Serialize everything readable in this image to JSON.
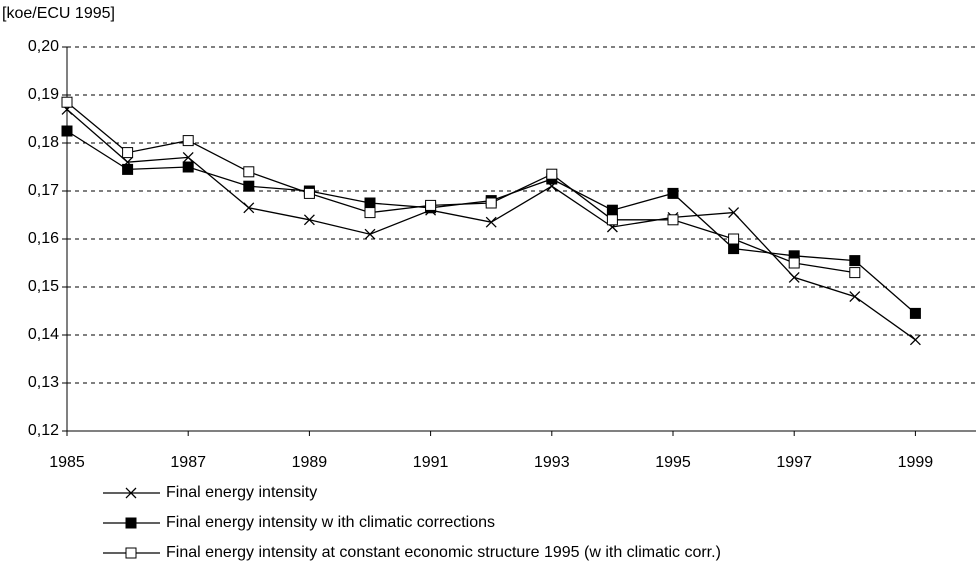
{
  "chart_data": {
    "type": "line",
    "y_label": "[koe/ECU 1995]",
    "x": [
      1985,
      1986,
      1987,
      1988,
      1989,
      1990,
      1991,
      1992,
      1993,
      1994,
      1995,
      1996,
      1997,
      1998,
      1999
    ],
    "series": [
      {
        "name": "Final energy intensity",
        "color": "#000000",
        "marker": "x",
        "values": [
          0.187,
          0.176,
          0.177,
          0.1665,
          0.164,
          0.161,
          0.166,
          0.1635,
          0.171,
          0.1625,
          0.1645,
          0.1655,
          0.152,
          0.148,
          0.139
        ]
      },
      {
        "name": "Final energy intensity w ith climatic corrections",
        "color": "#000000",
        "marker": "square-filled",
        "values": [
          0.1825,
          0.1745,
          0.175,
          0.171,
          0.17,
          0.1675,
          0.1665,
          0.168,
          0.1725,
          0.166,
          0.1695,
          0.158,
          0.1565,
          0.1555,
          0.1445
        ]
      },
      {
        "name": "Final energy intensity at constant economic structure 1995 (w ith climatic corr.)",
        "color": "#000000",
        "marker": "square-open",
        "values": [
          0.1885,
          0.178,
          0.1805,
          0.174,
          0.1695,
          0.1655,
          0.167,
          0.1675,
          0.1735,
          0.164,
          0.164,
          0.16,
          0.155,
          0.153,
          null
        ]
      }
    ],
    "xlim": [
      1985,
      2000
    ],
    "xticks": [
      1985,
      1987,
      1989,
      1991,
      1993,
      1995,
      1997,
      1999
    ],
    "ylim": [
      0.12,
      0.2
    ],
    "yticks": [
      {
        "value": 0.12,
        "label": "0,12"
      },
      {
        "value": 0.13,
        "label": "0,13"
      },
      {
        "value": 0.14,
        "label": "0,14"
      },
      {
        "value": 0.15,
        "label": "0,15"
      },
      {
        "value": 0.16,
        "label": "0,16"
      },
      {
        "value": 0.17,
        "label": "0,17"
      },
      {
        "value": 0.18,
        "label": "0,18"
      },
      {
        "value": 0.19,
        "label": "0,19"
      },
      {
        "value": 0.2,
        "label": "0,20"
      }
    ],
    "grid": true
  }
}
